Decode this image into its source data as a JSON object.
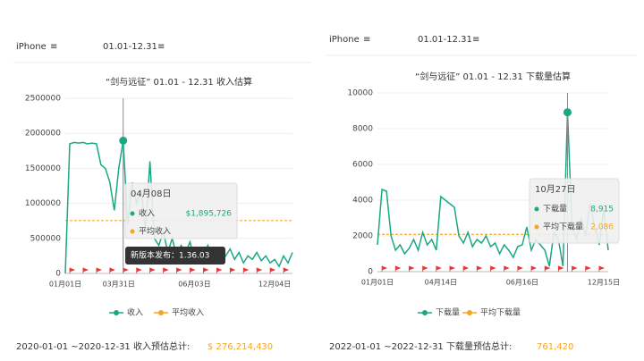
{
  "panels": [
    {
      "device": "iPhone",
      "range": "01.01-12.31",
      "footer_label": "2020-01-01 ~2020-12-31 收入预估总计:",
      "footer_total": "$ 276,214,430"
    },
    {
      "device": "iPhone",
      "range": "01.01-12.31",
      "footer_label": "2022-01-01 ~2022-12-31 下载量预估总计:",
      "footer_total": "761,420"
    }
  ],
  "chart_data": [
    {
      "type": "line",
      "title": "“剑与远征” 01.01 - 12.31 收入估算",
      "categories": [
        "01月01日",
        null,
        null,
        null,
        null,
        null,
        null,
        null,
        null,
        null,
        null,
        null,
        "03月31日",
        null,
        null,
        null,
        null,
        null,
        null,
        null,
        null,
        null,
        null,
        null,
        null,
        null,
        null,
        null,
        null,
        "06月03日",
        null,
        null,
        null,
        null,
        null,
        null,
        null,
        null,
        null,
        null,
        null,
        null,
        null,
        null,
        null,
        null,
        null,
        "12月04日",
        null,
        null,
        null,
        null
      ],
      "series": [
        {
          "name": "收入",
          "color": "#1aa783",
          "values": [
            0,
            1850000,
            1870000,
            1860000,
            1870000,
            1850000,
            1860000,
            1850000,
            1550000,
            1500000,
            1300000,
            900000,
            1500000,
            1895726,
            700000,
            1300000,
            1000000,
            1200000,
            600000,
            1600000,
            500000,
            400000,
            600000,
            300000,
            500000,
            250000,
            400000,
            300000,
            450000,
            200000,
            350000,
            250000,
            400000,
            200000,
            300000,
            150000,
            250000,
            350000,
            200000,
            300000,
            150000,
            250000,
            200000,
            300000,
            180000,
            250000,
            150000,
            200000,
            100000,
            250000,
            150000,
            300000
          ]
        }
      ],
      "average": {
        "name": "平均收入",
        "color": "#f5a623",
        "value": 755000
      },
      "ylim": [
        0,
        2500000
      ],
      "yticks": [
        0,
        500000,
        1000000,
        1500000,
        2000000,
        2500000
      ],
      "tooltip": {
        "title": "04月08日",
        "index": 13,
        "lines": [
          {
            "name": "收入",
            "value_label": "$1,895,726"
          },
          {
            "name": "平均收入"
          }
        ],
        "note": "新版本发布：1.36.03"
      }
    },
    {
      "type": "line",
      "title": "“剑与远征” 01.01 - 12.31 下载量估算",
      "categories": [
        "01月01日",
        null,
        null,
        null,
        null,
        null,
        null,
        null,
        null,
        null,
        null,
        null,
        null,
        null,
        "04月14日",
        null,
        null,
        null,
        null,
        null,
        null,
        null,
        null,
        null,
        null,
        null,
        null,
        null,
        null,
        null,
        null,
        null,
        "06月16日",
        null,
        null,
        null,
        null,
        null,
        null,
        null,
        null,
        null,
        null,
        null,
        null,
        null,
        null,
        null,
        null,
        null,
        "12月15日",
        null
      ],
      "series": [
        {
          "name": "下载量",
          "color": "#1aa783",
          "values": [
            1500,
            4600,
            4500,
            2000,
            1200,
            1500,
            1000,
            1300,
            1800,
            1200,
            2200,
            1500,
            1800,
            1200,
            4200,
            4000,
            3800,
            3600,
            2000,
            1600,
            2200,
            1400,
            1800,
            1600,
            2000,
            1400,
            1600,
            1000,
            1500,
            1200,
            800,
            1400,
            1500,
            2500,
            1200,
            1800,
            1500,
            1200,
            300,
            2200,
            1800,
            300,
            8915,
            2500,
            1800,
            3000,
            2000,
            3800,
            2500,
            1500,
            3500,
            1200
          ]
        }
      ],
      "average": {
        "name": "平均下载量",
        "color": "#f5a623",
        "value": 2086
      },
      "ylim": [
        0,
        10000
      ],
      "yticks": [
        0,
        2000,
        4000,
        6000,
        8000,
        10000
      ],
      "tooltip": {
        "title": "10月27日",
        "index": 42,
        "lines": [
          {
            "name": "下载量",
            "value_label": "8,915"
          },
          {
            "name": "平均下载量",
            "value_label": "2,086"
          }
        ]
      }
    }
  ]
}
